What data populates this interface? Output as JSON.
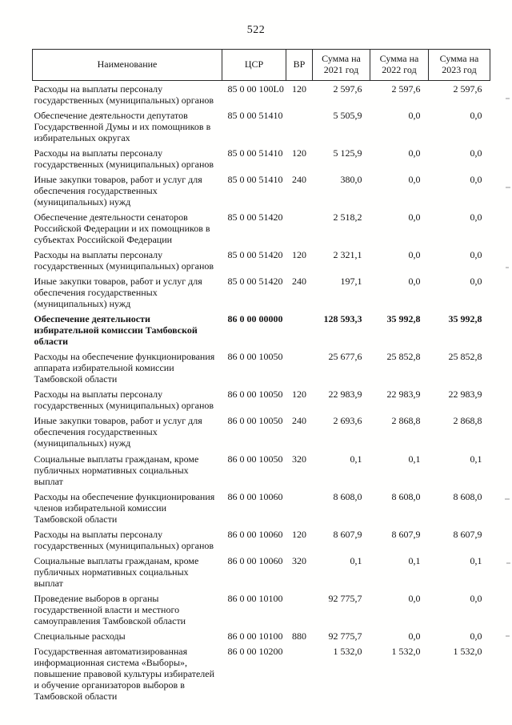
{
  "page": {
    "number": "522"
  },
  "table": {
    "headers": [
      "Наименование",
      "ЦСР",
      "ВР",
      "Сумма на 2021 год",
      "Сумма на 2022 год",
      "Сумма на 2023 год"
    ],
    "rows": [
      {
        "name": "Расходы на выплаты персоналу государственных (муниципальных) органов",
        "csr": "85 0 00 100L0",
        "vr": "120",
        "y2021": "2 597,6",
        "y2022": "2 597,6",
        "y2023": "2 597,6",
        "bold": false
      },
      {
        "name": "Обеспечение деятельности депутатов Государственной Думы и их помощников в избирательных округах",
        "csr": "85 0 00 51410",
        "vr": "",
        "y2021": "5 505,9",
        "y2022": "0,0",
        "y2023": "0,0",
        "bold": false
      },
      {
        "name": "Расходы на выплаты персоналу государственных (муниципальных) органов",
        "csr": "85 0 00 51410",
        "vr": "120",
        "y2021": "5 125,9",
        "y2022": "0,0",
        "y2023": "0,0",
        "bold": false
      },
      {
        "name": "Иные закупки товаров, работ и услуг для обеспечения государственных (муниципальных) нужд",
        "csr": "85 0 00 51410",
        "vr": "240",
        "y2021": "380,0",
        "y2022": "0,0",
        "y2023": "0,0",
        "bold": false
      },
      {
        "name": "Обеспечение деятельности сенаторов Российской Федерации и их помощников в субъектах Российской Федерации",
        "csr": "85 0 00 51420",
        "vr": "",
        "y2021": "2 518,2",
        "y2022": "0,0",
        "y2023": "0,0",
        "bold": false
      },
      {
        "name": "Расходы на выплаты персоналу государственных (муниципальных) органов",
        "csr": "85 0 00 51420",
        "vr": "120",
        "y2021": "2 321,1",
        "y2022": "0,0",
        "y2023": "0,0",
        "bold": false
      },
      {
        "name": "Иные закупки товаров, работ и услуг для обеспечения государственных (муниципальных) нужд",
        "csr": "85 0 00 51420",
        "vr": "240",
        "y2021": "197,1",
        "y2022": "0,0",
        "y2023": "0,0",
        "bold": false
      },
      {
        "name": "Обеспечение деятельности избирательной комиссии Тамбовской области",
        "csr": "86 0 00 00000",
        "vr": "",
        "y2021": "128 593,3",
        "y2022": "35 992,8",
        "y2023": "35 992,8",
        "bold": true
      },
      {
        "name": "Расходы на обеспечение функционирования аппарата избирательной комиссии Тамбовской области",
        "csr": "86 0 00 10050",
        "vr": "",
        "y2021": "25 677,6",
        "y2022": "25 852,8",
        "y2023": "25 852,8",
        "bold": false
      },
      {
        "name": "Расходы на выплаты персоналу государственных (муниципальных) органов",
        "csr": "86 0 00 10050",
        "vr": "120",
        "y2021": "22 983,9",
        "y2022": "22 983,9",
        "y2023": "22 983,9",
        "bold": false
      },
      {
        "name": "Иные закупки товаров, работ и услуг для обеспечения государственных (муниципальных) нужд",
        "csr": "86 0 00 10050",
        "vr": "240",
        "y2021": "2 693,6",
        "y2022": "2 868,8",
        "y2023": "2 868,8",
        "bold": false
      },
      {
        "name": "Социальные выплаты гражданам, кроме публичных нормативных социальных выплат",
        "csr": "86 0 00 10050",
        "vr": "320",
        "y2021": "0,1",
        "y2022": "0,1",
        "y2023": "0,1",
        "bold": false
      },
      {
        "name": "Расходы на обеспечение функционирования членов избирательной комиссии Тамбовской области",
        "csr": "86 0 00 10060",
        "vr": "",
        "y2021": "8 608,0",
        "y2022": "8 608,0",
        "y2023": "8 608,0",
        "bold": false
      },
      {
        "name": "Расходы на выплаты персоналу государственных (муниципальных) органов",
        "csr": "86 0 00 10060",
        "vr": "120",
        "y2021": "8 607,9",
        "y2022": "8 607,9",
        "y2023": "8 607,9",
        "bold": false
      },
      {
        "name": "Социальные выплаты гражданам, кроме публичных нормативных социальных выплат",
        "csr": "86 0 00 10060",
        "vr": "320",
        "y2021": "0,1",
        "y2022": "0,1",
        "y2023": "0,1",
        "bold": false
      },
      {
        "name": "Проведение выборов в органы государственной власти и местного самоуправления Тамбовской области",
        "csr": "86 0 00 10100",
        "vr": "",
        "y2021": "92 775,7",
        "y2022": "0,0",
        "y2023": "0,0",
        "bold": false
      },
      {
        "name": "Специальные расходы",
        "csr": "86 0 00 10100",
        "vr": "880",
        "y2021": "92 775,7",
        "y2022": "0,0",
        "y2023": "0,0",
        "bold": false
      },
      {
        "name": "Государственная автоматизированная информационная система «Выборы», повышение правовой культуры избирателей и обучение организаторов выборов в Тамбовской области",
        "csr": "86 0 00 10200",
        "vr": "",
        "y2021": "1 532,0",
        "y2022": "1 532,0",
        "y2023": "1 532,0",
        "bold": false
      }
    ]
  }
}
